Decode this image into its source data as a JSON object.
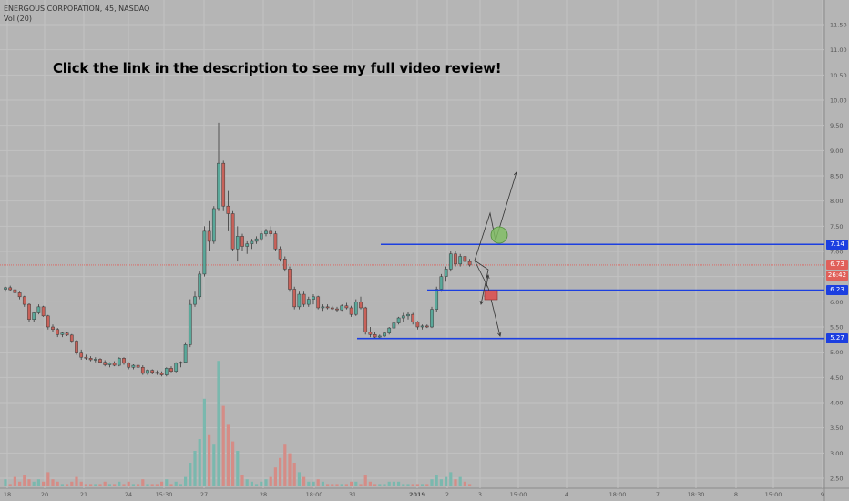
{
  "header": {
    "title": "ENERGOUS CORPORATION, 45, NASDAQ",
    "volume_label": "Vol (20)"
  },
  "annotation": "Click the link in the description to see my full video review!",
  "price_badges": [
    {
      "value": "7.14",
      "color": "#1c3fe0"
    },
    {
      "value": "6.73",
      "color": "#e0605a"
    },
    {
      "value": "26:42",
      "color": "#e0605a"
    },
    {
      "value": "6.23",
      "color": "#1c3fe0"
    },
    {
      "value": "5.27",
      "color": "#1c3fe0"
    }
  ],
  "chart_data": {
    "type": "candlestick",
    "title": "ENERGOUS CORPORATION, 45, NASDAQ",
    "y_ticks": [
      "11.50",
      "11.00",
      "10.50",
      "10.00",
      "9.50",
      "9.00",
      "8.50",
      "8.00",
      "7.50",
      "7.00",
      "6.50",
      "6.00",
      "5.50",
      "5.00",
      "4.50",
      "4.00",
      "3.50",
      "3.00",
      "2.50"
    ],
    "x_ticks": [
      "18",
      "20",
      "21",
      "24",
      "15:30",
      "27",
      "28",
      "18:00",
      "31",
      "2019",
      "2",
      "3",
      "15:00",
      "4",
      "18:00",
      "7",
      "18:30",
      "8",
      "15:00",
      "9"
    ],
    "ylim": [
      2.3,
      11.8
    ],
    "grid": true,
    "colors": {
      "up": "#5aa89a",
      "down": "#c8625a",
      "volume_up": "#7ab8ae",
      "volume_down": "#d58c86",
      "level_line": "#1c3fe0",
      "last_price_line": "#e0605a"
    },
    "candles": [
      [
        6.25,
        6.3,
        6.2,
        6.28
      ],
      [
        6.28,
        6.32,
        6.22,
        6.24
      ],
      [
        6.24,
        6.26,
        6.15,
        6.18
      ],
      [
        6.18,
        6.2,
        6.05,
        6.1
      ],
      [
        6.1,
        6.12,
        5.9,
        5.95
      ],
      [
        5.95,
        5.97,
        5.6,
        5.65
      ],
      [
        5.65,
        5.8,
        5.6,
        5.78
      ],
      [
        5.78,
        5.95,
        5.75,
        5.9
      ],
      [
        5.9,
        5.92,
        5.7,
        5.72
      ],
      [
        5.72,
        5.74,
        5.45,
        5.5
      ],
      [
        5.5,
        5.55,
        5.4,
        5.45
      ],
      [
        5.45,
        5.48,
        5.3,
        5.35
      ],
      [
        5.35,
        5.4,
        5.3,
        5.38
      ],
      [
        5.38,
        5.4,
        5.32,
        5.34
      ],
      [
        5.34,
        5.36,
        5.2,
        5.22
      ],
      [
        5.22,
        5.24,
        4.95,
        5.0
      ],
      [
        5.0,
        5.05,
        4.85,
        4.9
      ],
      [
        4.9,
        4.95,
        4.85,
        4.88
      ],
      [
        4.88,
        4.92,
        4.82,
        4.85
      ],
      [
        4.85,
        4.9,
        4.8,
        4.86
      ],
      [
        4.86,
        4.88,
        4.78,
        4.8
      ],
      [
        4.8,
        4.84,
        4.72,
        4.75
      ],
      [
        4.75,
        4.8,
        4.7,
        4.78
      ],
      [
        4.78,
        4.82,
        4.72,
        4.74
      ],
      [
        4.74,
        4.9,
        4.72,
        4.88
      ],
      [
        4.88,
        4.9,
        4.75,
        4.78
      ],
      [
        4.78,
        4.8,
        4.66,
        4.7
      ],
      [
        4.7,
        4.76,
        4.66,
        4.74
      ],
      [
        4.74,
        4.78,
        4.68,
        4.7
      ],
      [
        4.7,
        4.74,
        4.55,
        4.58
      ],
      [
        4.58,
        4.66,
        4.55,
        4.64
      ],
      [
        4.64,
        4.66,
        4.56,
        4.6
      ],
      [
        4.6,
        4.64,
        4.55,
        4.58
      ],
      [
        4.58,
        4.62,
        4.52,
        4.55
      ],
      [
        4.55,
        4.7,
        4.52,
        4.68
      ],
      [
        4.68,
        4.72,
        4.6,
        4.62
      ],
      [
        4.62,
        4.8,
        4.6,
        4.78
      ],
      [
        4.78,
        4.82,
        4.7,
        4.8
      ],
      [
        4.8,
        5.2,
        4.78,
        5.15
      ],
      [
        5.15,
        6.05,
        5.1,
        5.95
      ],
      [
        5.95,
        6.2,
        5.9,
        6.1
      ],
      [
        6.1,
        6.6,
        6.05,
        6.55
      ],
      [
        6.55,
        7.5,
        6.5,
        7.4
      ],
      [
        7.4,
        7.6,
        7.0,
        7.2
      ],
      [
        7.2,
        7.9,
        7.15,
        7.85
      ],
      [
        7.85,
        9.55,
        7.8,
        8.75
      ],
      [
        8.75,
        8.8,
        7.8,
        7.9
      ],
      [
        7.9,
        8.2,
        7.4,
        7.75
      ],
      [
        7.75,
        7.8,
        7.0,
        7.05
      ],
      [
        7.05,
        7.5,
        6.8,
        7.3
      ],
      [
        7.3,
        7.35,
        7.0,
        7.1
      ],
      [
        7.1,
        7.2,
        6.95,
        7.15
      ],
      [
        7.15,
        7.25,
        7.05,
        7.2
      ],
      [
        7.2,
        7.3,
        7.15,
        7.25
      ],
      [
        7.25,
        7.4,
        7.2,
        7.35
      ],
      [
        7.35,
        7.45,
        7.3,
        7.4
      ],
      [
        7.4,
        7.5,
        7.3,
        7.35
      ],
      [
        7.35,
        7.4,
        7.0,
        7.05
      ],
      [
        7.05,
        7.1,
        6.8,
        6.85
      ],
      [
        6.85,
        6.9,
        6.6,
        6.65
      ],
      [
        6.65,
        6.7,
        6.2,
        6.25
      ],
      [
        6.25,
        6.3,
        5.85,
        5.9
      ],
      [
        5.9,
        6.2,
        5.85,
        6.15
      ],
      [
        6.15,
        6.2,
        5.9,
        5.95
      ],
      [
        5.95,
        6.1,
        5.9,
        6.05
      ],
      [
        6.05,
        6.15,
        5.95,
        6.1
      ],
      [
        6.1,
        6.12,
        5.85,
        5.88
      ],
      [
        5.88,
        5.95,
        5.82,
        5.9
      ],
      [
        5.9,
        5.95,
        5.85,
        5.88
      ],
      [
        5.88,
        5.92,
        5.84,
        5.86
      ],
      [
        5.86,
        5.9,
        5.8,
        5.84
      ],
      [
        5.84,
        5.95,
        5.82,
        5.92
      ],
      [
        5.92,
        5.98,
        5.85,
        5.88
      ],
      [
        5.88,
        5.92,
        5.7,
        5.75
      ],
      [
        5.75,
        6.05,
        5.72,
        6.0
      ],
      [
        6.0,
        6.1,
        5.85,
        5.88
      ],
      [
        5.88,
        5.9,
        5.35,
        5.4
      ],
      [
        5.4,
        5.5,
        5.3,
        5.35
      ],
      [
        5.35,
        5.4,
        5.27,
        5.3
      ],
      [
        5.3,
        5.35,
        5.27,
        5.32
      ],
      [
        5.32,
        5.4,
        5.3,
        5.38
      ],
      [
        5.38,
        5.5,
        5.35,
        5.48
      ],
      [
        5.48,
        5.6,
        5.45,
        5.58
      ],
      [
        5.58,
        5.7,
        5.55,
        5.68
      ],
      [
        5.68,
        5.78,
        5.6,
        5.72
      ],
      [
        5.72,
        5.8,
        5.65,
        5.75
      ],
      [
        5.75,
        5.78,
        5.55,
        5.6
      ],
      [
        5.6,
        5.62,
        5.45,
        5.5
      ],
      [
        5.5,
        5.55,
        5.45,
        5.52
      ],
      [
        5.52,
        5.55,
        5.48,
        5.5
      ],
      [
        5.5,
        5.9,
        5.48,
        5.85
      ],
      [
        5.85,
        6.3,
        5.8,
        6.25
      ],
      [
        6.25,
        6.55,
        6.2,
        6.5
      ],
      [
        6.5,
        6.7,
        6.4,
        6.65
      ],
      [
        6.65,
        7.0,
        6.6,
        6.95
      ],
      [
        6.95,
        7.0,
        6.7,
        6.75
      ],
      [
        6.75,
        6.95,
        6.7,
        6.9
      ],
      [
        6.9,
        6.95,
        6.75,
        6.8
      ],
      [
        6.8,
        6.85,
        6.7,
        6.73
      ]
    ],
    "volumes": [
      [
        0.3,
        1
      ],
      [
        0.1,
        0
      ],
      [
        0.4,
        0
      ],
      [
        0.2,
        0
      ],
      [
        0.5,
        0
      ],
      [
        0.3,
        0
      ],
      [
        0.2,
        1
      ],
      [
        0.3,
        1
      ],
      [
        0.2,
        0
      ],
      [
        0.6,
        0
      ],
      [
        0.3,
        0
      ],
      [
        0.2,
        0
      ],
      [
        0.1,
        1
      ],
      [
        0.1,
        0
      ],
      [
        0.2,
        0
      ],
      [
        0.4,
        0
      ],
      [
        0.2,
        0
      ],
      [
        0.1,
        0
      ],
      [
        0.1,
        0
      ],
      [
        0.1,
        1
      ],
      [
        0.1,
        0
      ],
      [
        0.2,
        0
      ],
      [
        0.1,
        1
      ],
      [
        0.1,
        0
      ],
      [
        0.2,
        1
      ],
      [
        0.1,
        0
      ],
      [
        0.2,
        0
      ],
      [
        0.1,
        1
      ],
      [
        0.1,
        0
      ],
      [
        0.3,
        0
      ],
      [
        0.1,
        1
      ],
      [
        0.1,
        0
      ],
      [
        0.1,
        0
      ],
      [
        0.2,
        0
      ],
      [
        0.3,
        1
      ],
      [
        0.1,
        0
      ],
      [
        0.2,
        1
      ],
      [
        0.1,
        1
      ],
      [
        0.4,
        1
      ],
      [
        1.0,
        1
      ],
      [
        1.5,
        1
      ],
      [
        2.0,
        1
      ],
      [
        3.7,
        1
      ],
      [
        2.2,
        0
      ],
      [
        1.8,
        1
      ],
      [
        5.3,
        1
      ],
      [
        3.4,
        0
      ],
      [
        2.6,
        0
      ],
      [
        1.9,
        0
      ],
      [
        1.5,
        1
      ],
      [
        0.5,
        0
      ],
      [
        0.3,
        1
      ],
      [
        0.2,
        1
      ],
      [
        0.1,
        1
      ],
      [
        0.2,
        1
      ],
      [
        0.3,
        1
      ],
      [
        0.4,
        0
      ],
      [
        0.8,
        0
      ],
      [
        1.2,
        0
      ],
      [
        1.8,
        0
      ],
      [
        1.4,
        0
      ],
      [
        1.0,
        0
      ],
      [
        0.6,
        1
      ],
      [
        0.4,
        0
      ],
      [
        0.2,
        1
      ],
      [
        0.2,
        1
      ],
      [
        0.3,
        0
      ],
      [
        0.2,
        1
      ],
      [
        0.1,
        0
      ],
      [
        0.1,
        0
      ],
      [
        0.1,
        0
      ],
      [
        0.1,
        1
      ],
      [
        0.1,
        0
      ],
      [
        0.2,
        0
      ],
      [
        0.2,
        1
      ],
      [
        0.1,
        0
      ],
      [
        0.5,
        0
      ],
      [
        0.2,
        0
      ],
      [
        0.1,
        0
      ],
      [
        0.1,
        1
      ],
      [
        0.1,
        1
      ],
      [
        0.2,
        1
      ],
      [
        0.2,
        1
      ],
      [
        0.2,
        1
      ],
      [
        0.1,
        1
      ],
      [
        0.1,
        1
      ],
      [
        0.1,
        0
      ],
      [
        0.1,
        0
      ],
      [
        0.1,
        1
      ],
      [
        0.1,
        0
      ],
      [
        0.3,
        1
      ],
      [
        0.5,
        1
      ],
      [
        0.3,
        1
      ],
      [
        0.4,
        1
      ],
      [
        0.6,
        1
      ],
      [
        0.3,
        0
      ],
      [
        0.4,
        1
      ],
      [
        0.2,
        0
      ],
      [
        0.1,
        0
      ]
    ],
    "horizontal_levels": [
      7.14,
      6.23,
      5.27
    ],
    "last_price": 6.73
  }
}
